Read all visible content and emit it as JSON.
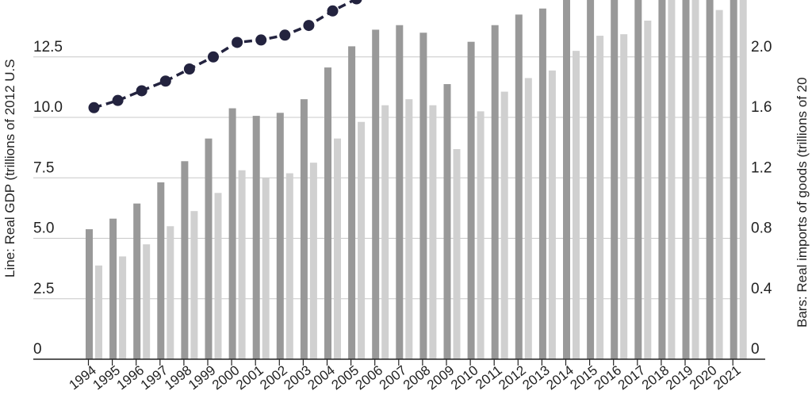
{
  "chart_data": {
    "type": "bar",
    "categories": [
      "1994",
      "1995",
      "1996",
      "1997",
      "1998",
      "1999",
      "2000",
      "2001",
      "2002",
      "2003",
      "2004",
      "2005",
      "2006",
      "2007",
      "2008",
      "2009",
      "2010",
      "2011",
      "2012",
      "2013",
      "2014",
      "2015",
      "2016",
      "2017",
      "2018",
      "2019",
      "2020",
      "2021"
    ],
    "series": [
      {
        "type": "line",
        "axis": "left",
        "color": "#23233f",
        "style": "dashed with circle markers",
        "values": [
          10.4,
          10.7,
          11.1,
          11.5,
          12.0,
          12.5,
          13.1,
          13.2,
          13.4,
          13.8,
          14.4,
          14.9,
          null,
          null,
          null,
          null,
          null,
          null,
          null,
          null,
          null,
          null,
          null,
          null,
          null,
          null,
          null,
          null
        ]
      },
      {
        "type": "bar",
        "axis": "right",
        "color": "#999999",
        "values": [
          0.86,
          0.93,
          1.03,
          1.17,
          1.31,
          1.46,
          1.66,
          1.61,
          1.63,
          1.72,
          1.93,
          2.07,
          2.18,
          2.21,
          2.16,
          1.82,
          2.1,
          2.21,
          2.28,
          2.32,
          2.45,
          2.45,
          2.45,
          2.45,
          2.45,
          2.45,
          2.45,
          2.45
        ]
      },
      {
        "type": "bar",
        "axis": "right",
        "color": "#d0d0d0",
        "values": [
          0.62,
          0.68,
          0.76,
          0.88,
          0.98,
          1.1,
          1.25,
          1.2,
          1.23,
          1.3,
          1.46,
          1.57,
          1.68,
          1.72,
          1.68,
          1.39,
          1.64,
          1.77,
          1.86,
          1.91,
          2.04,
          2.14,
          2.15,
          2.24,
          2.45,
          2.45,
          2.31,
          2.45
        ]
      }
    ],
    "ylabel": "Line: Real GDP (trillions of 2012 U.S",
    "ylabel_right": "Bars: Real imports of goods (trillions of 20",
    "y_ticks": [
      "0",
      "2.5",
      "5.0",
      "7.5",
      "10.0",
      "12.5"
    ],
    "y_ticks_right": [
      "0",
      "0.4",
      "0.8",
      "1.2",
      "1.6",
      "2.0"
    ],
    "ylim": [
      0,
      15
    ],
    "ylim_right": [
      0,
      2.4
    ],
    "grid": true
  }
}
